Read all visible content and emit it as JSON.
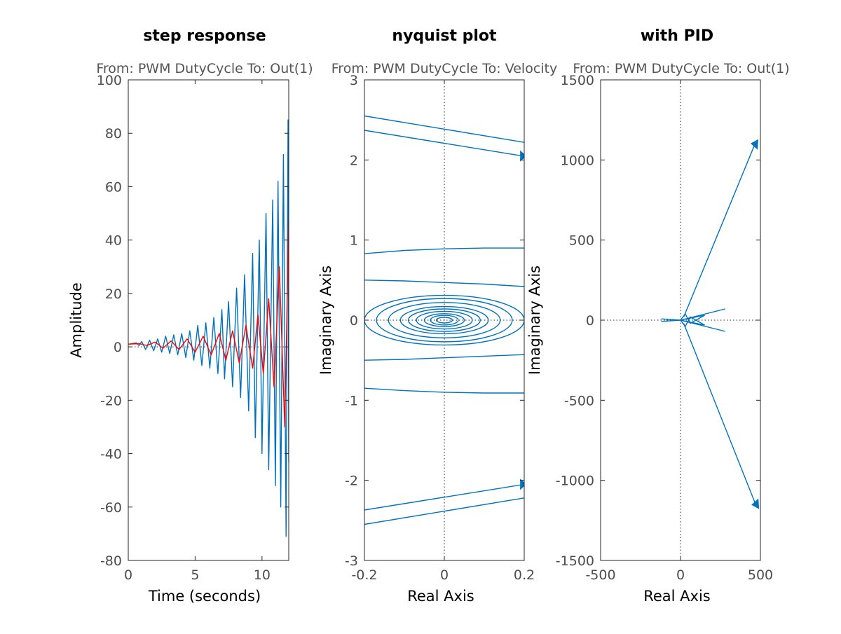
{
  "colors": {
    "primary": "#0072bd",
    "secondary": "#ff0000",
    "axis": "#262626",
    "ticks": "#4d4d4d"
  },
  "chart_data": [
    {
      "type": "line",
      "title": "step response",
      "subtitle": "From: PWM DutyCycle  To: Out(1)",
      "xlabel": "Time (seconds)",
      "ylabel": "Amplitude",
      "xlim": [
        0,
        12
      ],
      "ylim": [
        -80,
        100
      ],
      "xticks": [
        0,
        5,
        10
      ],
      "yticks": [
        -80,
        -60,
        -40,
        -20,
        0,
        20,
        40,
        60,
        80,
        100
      ],
      "zero_line": true,
      "series": [
        {
          "color": "#0072bd",
          "x": [
            0,
            0.6,
            0.8,
            1.0,
            1.3,
            1.6,
            1.9,
            2.2,
            2.5,
            2.8,
            3.1,
            3.4,
            3.7,
            4.0,
            4.3,
            4.6,
            4.9,
            5.2,
            5.5,
            5.8,
            6.1,
            6.4,
            6.7,
            7.0,
            7.2,
            7.5,
            7.8,
            8.1,
            8.4,
            8.7,
            9.0,
            9.3,
            9.5,
            9.8,
            10.0,
            10.3,
            10.5,
            10.8,
            11.0,
            11.2,
            11.4,
            11.6,
            11.8,
            11.95,
            12.0
          ],
          "y": [
            1,
            1.5,
            0.5,
            2,
            -1,
            2.5,
            -1.5,
            3,
            -2,
            4,
            -2.5,
            4.5,
            -3,
            5,
            -4,
            6,
            -5,
            8,
            -7,
            9,
            -8,
            11,
            -10,
            14,
            -12,
            17,
            -15,
            22,
            -19,
            27,
            -24,
            35,
            -34,
            40,
            -40,
            50,
            -46,
            55,
            -52,
            62,
            -60,
            72,
            -71,
            85,
            -43
          ]
        },
        {
          "color": "#ff0000",
          "x": [
            0,
            0.8,
            1.4,
            2.0,
            2.6,
            3.2,
            3.8,
            4.4,
            5.0,
            5.6,
            6.2,
            6.8,
            7.3,
            7.8,
            8.3,
            8.8,
            9.3,
            9.7,
            10.1,
            10.5,
            10.9,
            11.3,
            11.7,
            12.0
          ],
          "y": [
            1,
            1.2,
            0.5,
            1.8,
            -0.5,
            2.2,
            -1,
            3,
            -2,
            4,
            -3,
            5,
            -5,
            6,
            -6,
            8,
            -8,
            12,
            -10,
            18,
            -15,
            30,
            -30,
            48
          ]
        }
      ]
    },
    {
      "type": "line",
      "title": "nyquist plot",
      "subtitle": "From: PWM DutyCycle  To: Velocity",
      "xlabel": "Real Axis",
      "ylabel": "Imaginary Axis",
      "xlim": [
        -0.2,
        0.2
      ],
      "ylim": [
        -3,
        3
      ],
      "xticks": [
        -0.2,
        0,
        0.2
      ],
      "yticks": [
        -3,
        -2,
        -1,
        0,
        1,
        2,
        3
      ],
      "zero_line": true,
      "series": [
        {
          "color": "#0072bd",
          "x": [
            -0.2,
            0.2
          ],
          "y": [
            2.55,
            2.22
          ]
        },
        {
          "color": "#0072bd",
          "x": [
            -0.2,
            0.195
          ],
          "y": [
            2.37,
            2.05
          ]
        },
        {
          "color": "#0072bd",
          "x": [
            -0.2,
            0.2
          ],
          "y": [
            -2.37,
            -2.05
          ]
        },
        {
          "color": "#0072bd",
          "x": [
            -0.2,
            0.2
          ],
          "y": [
            -2.55,
            -2.22
          ]
        },
        {
          "color": "#0072bd",
          "x": [
            -0.2,
            -0.1,
            0,
            0.1,
            0.2
          ],
          "y": [
            0.83,
            0.87,
            0.89,
            0.9,
            0.9
          ]
        },
        {
          "color": "#0072bd",
          "x": [
            -0.2,
            -0.1,
            0,
            0.1,
            0.2
          ],
          "y": [
            -0.85,
            -0.88,
            -0.9,
            -0.91,
            -0.91
          ]
        },
        {
          "color": "#0072bd",
          "x": [
            -0.2,
            -0.1,
            0,
            0.1,
            0.2
          ],
          "y": [
            0.5,
            0.49,
            0.47,
            0.45,
            0.42
          ]
        },
        {
          "color": "#0072bd",
          "x": [
            -0.2,
            -0.1,
            0,
            0.1,
            0.2
          ],
          "y": [
            -0.5,
            -0.49,
            -0.47,
            -0.45,
            -0.43
          ]
        }
      ],
      "spirals": [
        {
          "color": "#0072bd",
          "cx": 0.0,
          "cy": 0.0,
          "rx": [
            0.2,
            0.17,
            0.14,
            0.11,
            0.09,
            0.07,
            0.05,
            0.035,
            0.02
          ],
          "ry": [
            0.31,
            0.27,
            0.22,
            0.17,
            0.14,
            0.11,
            0.08,
            0.06,
            0.035
          ]
        }
      ],
      "arrows": [
        {
          "x": 0.195,
          "y": 2.05,
          "direction": "right"
        },
        {
          "x": 0.195,
          "y": -2.05,
          "direction": "right"
        }
      ]
    },
    {
      "type": "line",
      "title": "with PID",
      "subtitle": "From: PWM DutyCycle  To: Out(1)",
      "xlabel": "Real Axis",
      "ylabel": "Imaginary Axis",
      "xlim": [
        -500,
        500
      ],
      "ylim": [
        -1500,
        1500
      ],
      "xticks": [
        -500,
        0,
        500
      ],
      "yticks": [
        -1500,
        -1000,
        -500,
        0,
        500,
        1000,
        1500
      ],
      "zero_line": true,
      "series": [
        {
          "color": "#0072bd",
          "x": [
            20,
            470
          ],
          "y": [
            20,
            1110
          ]
        },
        {
          "color": "#0072bd",
          "x": [
            20,
            470
          ],
          "y": [
            -20,
            -1150
          ]
        },
        {
          "color": "#0072bd",
          "x": [
            -120,
            0,
            280
          ],
          "y": [
            8,
            0,
            70
          ]
        },
        {
          "color": "#0072bd",
          "x": [
            -120,
            0,
            280
          ],
          "y": [
            -8,
            0,
            -70
          ]
        },
        {
          "color": "#0072bd",
          "x": [
            0,
            150,
            60,
            30,
            0
          ],
          "y": [
            0,
            30,
            -20,
            40,
            0
          ]
        },
        {
          "color": "#0072bd",
          "x": [
            0,
            150,
            60,
            30,
            0
          ],
          "y": [
            0,
            -30,
            20,
            -40,
            0
          ]
        }
      ],
      "arrows": [
        {
          "x": 465,
          "y": 1090,
          "direction": "up-right"
        },
        {
          "x": 470,
          "y": -1140,
          "direction": "down-right"
        }
      ]
    }
  ]
}
